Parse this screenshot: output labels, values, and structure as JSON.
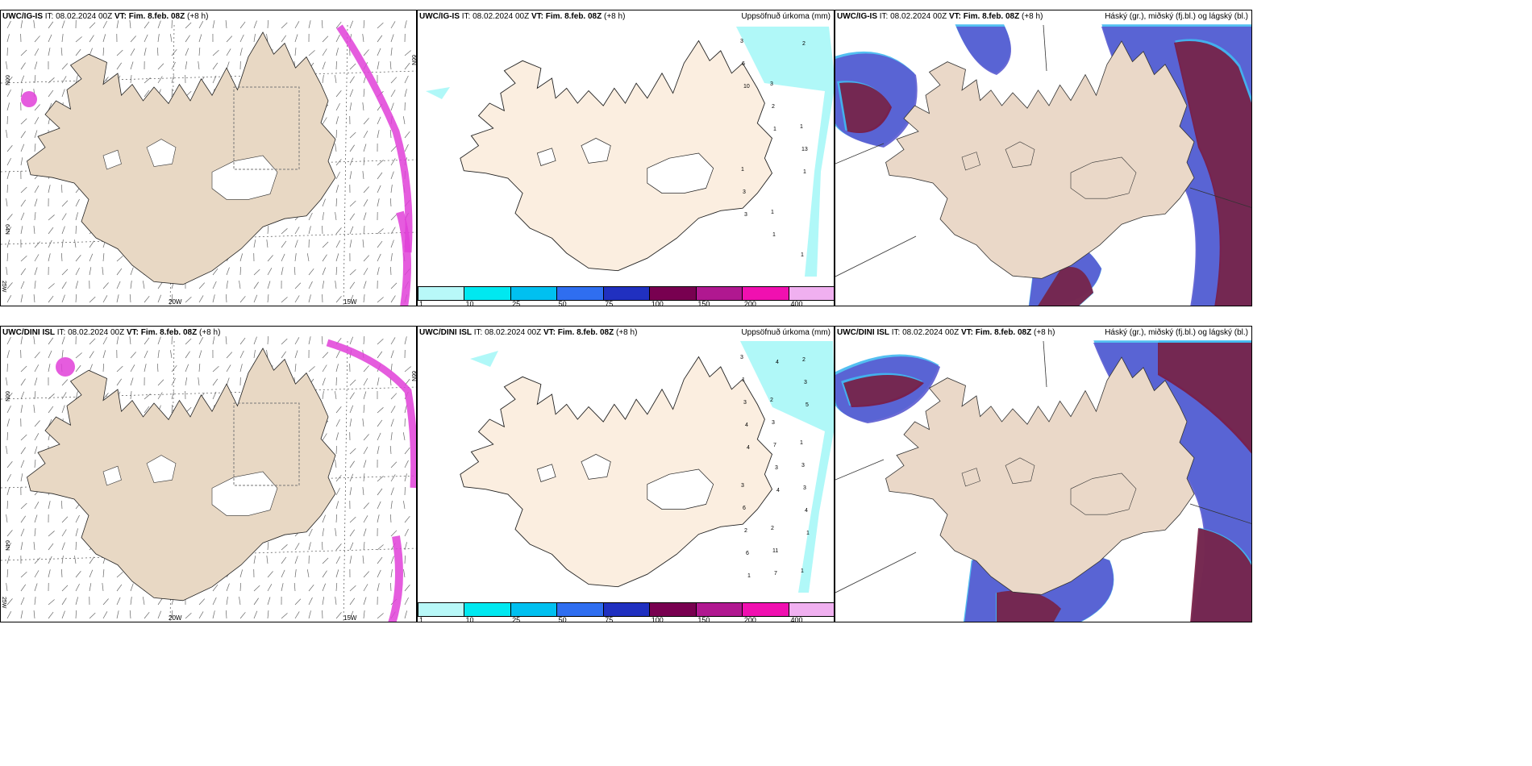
{
  "rows": [
    {
      "model": "UWC/IG-IS",
      "it_label": "IT:",
      "it_value": "08.02.2024 00Z",
      "vt_label": "VT:",
      "vt_value": "Fim. 8.feb. 08Z",
      "lead": "(+8 h)"
    },
    {
      "model": "UWC/DINI ISL",
      "it_label": "IT:",
      "it_value": "08.02.2024 00Z",
      "vt_label": "VT:",
      "vt_value": "Fim. 8.feb. 08Z",
      "lead": "(+8 h)"
    }
  ],
  "panel_titles": {
    "precip": "Uppsöfnuð úrkoma (mm)",
    "clouds": "Háský (gr.), miðský (fj.bl.) og lágský (bl.)"
  },
  "lat_lon_labels": {
    "lon_20w": "20W",
    "lon_15w": "15W",
    "lon_25w": "25W",
    "lat_66n": "66N",
    "lat_64n": "64N"
  },
  "precip_legend": {
    "labels": [
      "1",
      "10",
      "25",
      "50",
      "75",
      "100",
      "150",
      "200",
      "400"
    ],
    "colors": [
      "#b8f8f8",
      "#00e8f0",
      "#00c0f0",
      "#2f6ef0",
      "#2030c0",
      "#780050",
      "#b01890",
      "#f010b0",
      "#f0b0f0"
    ]
  },
  "precip_values_top": [
    "3",
    "3",
    "1",
    "1",
    "1",
    "1",
    "6",
    "2",
    "13",
    "3",
    "1",
    "2",
    "10",
    "1",
    "1",
    "3"
  ],
  "precip_values_bottom": [
    "3",
    "2",
    "1",
    "3",
    "2",
    "1",
    "1",
    "3",
    "3",
    "6",
    "11",
    "2",
    "3",
    "7",
    "3",
    "2",
    "7",
    "3",
    "4",
    "3",
    "4",
    "6",
    "4",
    "5",
    "4",
    "4",
    "1",
    "1"
  ],
  "colors": {
    "land_wind": "#e8d8c4",
    "land_precip": "#fbeee0",
    "land_cloud": "#ead8c8",
    "precip_cyan": "#b0f8f8",
    "wind_magenta": "#e040d8",
    "cloud_high": "#7a1a40",
    "cloud_mid": "#5a5ad0",
    "cloud_low": "#40b8f0"
  }
}
